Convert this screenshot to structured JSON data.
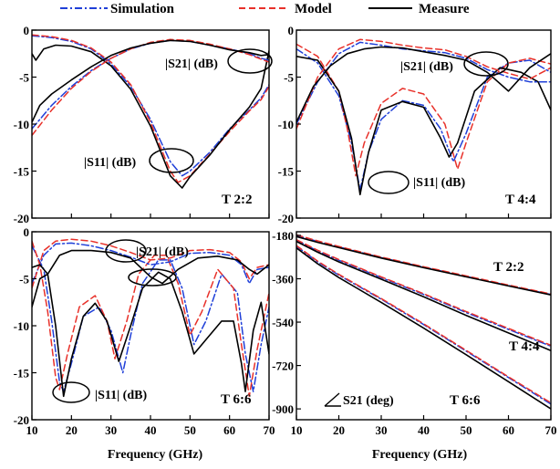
{
  "legend": [
    {
      "label": "Simulation",
      "color": "#1f3fd8",
      "dash": "dashdot"
    },
    {
      "label": "Model",
      "color": "#e8312a",
      "dash": "dash"
    },
    {
      "label": "Measure",
      "color": "#000000",
      "dash": "solid"
    }
  ],
  "xlabel": "Frequency (GHz)",
  "chart_data": [
    {
      "type": "line",
      "panel": "top-left",
      "label": "T 2:2",
      "xlim": [
        10,
        70
      ],
      "ylim": [
        -20,
        0
      ],
      "xticks": [
        10,
        20,
        30,
        40,
        50,
        60,
        70
      ],
      "yticks": [
        -20,
        -15,
        -10,
        -5,
        0
      ],
      "series": [
        {
          "name": "Simulation",
          "param": "S21",
          "x": [
            10,
            15,
            20,
            25,
            30,
            35,
            40,
            45,
            48,
            50,
            55,
            60,
            65,
            68,
            70
          ],
          "y": [
            -0.6,
            -0.8,
            -1.2,
            -2.0,
            -3.6,
            -6.0,
            -9.5,
            -14.0,
            -15.5,
            -15.0,
            -13.0,
            -10.5,
            -8.5,
            -7.2,
            -5.8
          ]
        },
        {
          "name": "Model",
          "param": "S21",
          "x": [
            10,
            15,
            20,
            25,
            30,
            35,
            40,
            45,
            47,
            50,
            55,
            60,
            65,
            68,
            70
          ],
          "y": [
            -0.5,
            -0.7,
            -1.1,
            -1.9,
            -3.4,
            -5.8,
            -9.8,
            -15.0,
            -16.2,
            -15.5,
            -13.2,
            -10.8,
            -8.6,
            -7.4,
            -6.0
          ]
        },
        {
          "name": "Measure",
          "param": "S21",
          "x": [
            10,
            11,
            13,
            16,
            20,
            25,
            30,
            35,
            40,
            45,
            48,
            50,
            55,
            60,
            65,
            68,
            70
          ],
          "y": [
            -2.5,
            -3.2,
            -2.0,
            -1.6,
            -1.7,
            -2.3,
            -3.8,
            -6.3,
            -10.2,
            -15.5,
            -16.8,
            -15.6,
            -13.3,
            -10.6,
            -8.2,
            -6.2,
            -2.2
          ]
        },
        {
          "name": "Simulation",
          "param": "S11",
          "x": [
            10,
            15,
            20,
            25,
            30,
            35,
            40,
            45,
            50,
            55,
            60,
            65,
            68,
            70
          ],
          "y": [
            -10.5,
            -8.0,
            -6.0,
            -4.3,
            -3.0,
            -2.0,
            -1.4,
            -1.1,
            -1.2,
            -1.6,
            -2.0,
            -2.5,
            -3.0,
            -3.2
          ]
        },
        {
          "name": "Model",
          "param": "S11",
          "x": [
            10,
            15,
            20,
            25,
            30,
            35,
            40,
            45,
            50,
            55,
            60,
            65,
            68,
            70
          ],
          "y": [
            -11.2,
            -8.5,
            -6.2,
            -4.4,
            -3.0,
            -2.0,
            -1.3,
            -1.0,
            -1.1,
            -1.5,
            -2.0,
            -2.6,
            -3.1,
            -3.4
          ]
        },
        {
          "name": "Measure",
          "param": "S11",
          "x": [
            10,
            12,
            15,
            20,
            25,
            30,
            35,
            40,
            45,
            50,
            55,
            60,
            65,
            68,
            70
          ],
          "y": [
            -9.8,
            -8.0,
            -6.8,
            -5.3,
            -3.9,
            -2.7,
            -1.9,
            -1.4,
            -1.1,
            -1.2,
            -1.6,
            -2.1,
            -2.4,
            -2.7,
            -2.6
          ]
        }
      ],
      "annotations": [
        "|S21| (dB)",
        "|S11| (dB)"
      ]
    },
    {
      "type": "line",
      "panel": "top-right",
      "label": "T 4:4",
      "xlim": [
        10,
        70
      ],
      "ylim": [
        -20,
        0
      ],
      "xticks": [
        10,
        20,
        30,
        40,
        50,
        60,
        70
      ],
      "yticks": [
        -20,
        -15,
        -10,
        -5,
        0
      ],
      "series": [
        {
          "name": "Simulation",
          "param": "S11",
          "x": [
            10,
            15,
            20,
            23,
            25,
            27,
            30,
            35,
            40,
            44,
            47,
            50,
            55,
            60,
            65,
            70
          ],
          "y": [
            -2.0,
            -3.5,
            -7.0,
            -12.0,
            -17.0,
            -13.0,
            -9.5,
            -7.5,
            -8.0,
            -10.5,
            -14.0,
            -11.0,
            -5.0,
            -3.5,
            -3.2,
            -4.5
          ]
        },
        {
          "name": "Model",
          "param": "S11",
          "x": [
            10,
            15,
            20,
            22,
            24,
            26,
            30,
            35,
            40,
            45,
            48,
            50,
            55,
            60,
            65,
            70
          ],
          "y": [
            -1.5,
            -2.8,
            -6.5,
            -10.5,
            -15.5,
            -12.0,
            -7.8,
            -6.2,
            -6.8,
            -10.0,
            -14.8,
            -12.0,
            -5.5,
            -3.5,
            -3.0,
            -3.6
          ]
        },
        {
          "name": "Measure",
          "param": "S11",
          "x": [
            10,
            15,
            20,
            23,
            25,
            27,
            30,
            35,
            40,
            44,
            46,
            48,
            52,
            58,
            63,
            67,
            70
          ],
          "y": [
            -2.8,
            -3.2,
            -6.5,
            -11.5,
            -17.5,
            -13.0,
            -8.5,
            -7.6,
            -8.2,
            -11.5,
            -13.5,
            -12.0,
            -6.5,
            -4.0,
            -4.5,
            -5.5,
            -8.5
          ]
        },
        {
          "name": "Simulation",
          "param": "S21",
          "x": [
            10,
            15,
            20,
            25,
            30,
            35,
            40,
            45,
            50,
            55,
            60,
            65,
            70
          ],
          "y": [
            -10.0,
            -5.5,
            -2.5,
            -1.3,
            -1.6,
            -2.0,
            -2.2,
            -2.4,
            -3.0,
            -4.2,
            -5.0,
            -5.5,
            -5.5
          ]
        },
        {
          "name": "Model",
          "param": "S21",
          "x": [
            10,
            15,
            20,
            25,
            30,
            35,
            40,
            45,
            50,
            55,
            60,
            65,
            70
          ],
          "y": [
            -10.5,
            -5.0,
            -2.0,
            -1.0,
            -1.2,
            -1.6,
            -1.9,
            -2.1,
            -2.8,
            -3.9,
            -4.6,
            -5.2,
            -4.0
          ]
        },
        {
          "name": "Measure",
          "param": "S21",
          "x": [
            10,
            14,
            18,
            22,
            26,
            30,
            35,
            40,
            45,
            50,
            55,
            60,
            65,
            70
          ],
          "y": [
            -9.8,
            -6.0,
            -3.8,
            -2.5,
            -2.0,
            -1.8,
            -1.9,
            -2.3,
            -2.7,
            -3.2,
            -4.5,
            -6.5,
            -4.0,
            -2.5
          ]
        }
      ],
      "annotations": [
        "|S21| (dB)",
        "|S11| (dB)"
      ]
    },
    {
      "type": "line",
      "panel": "bottom-left",
      "label": "T 6:6",
      "xlim": [
        10,
        70
      ],
      "ylim": [
        -20,
        0
      ],
      "xticks": [
        10,
        20,
        30,
        40,
        50,
        60,
        70
      ],
      "yticks": [
        -20,
        -15,
        -10,
        -5,
        0
      ],
      "series": [
        {
          "name": "Simulation",
          "param": "S11",
          "x": [
            10,
            13,
            15,
            17,
            18,
            20,
            23,
            27,
            30,
            33,
            35,
            38,
            42,
            45,
            48,
            51,
            54,
            58,
            62,
            64,
            66,
            68,
            70
          ],
          "y": [
            -1.5,
            -4.0,
            -9.5,
            -16.0,
            -17.0,
            -14.0,
            -9.0,
            -8.0,
            -10.5,
            -15.0,
            -11.0,
            -5.5,
            -3.0,
            -3.0,
            -6.0,
            -12.0,
            -9.5,
            -4.5,
            -6.5,
            -13.0,
            -17.0,
            -12.0,
            -8.0
          ]
        },
        {
          "name": "Model",
          "param": "S11",
          "x": [
            10,
            12,
            14,
            16,
            17,
            19,
            22,
            26,
            29,
            31,
            34,
            37,
            41,
            44,
            47,
            50,
            53,
            57,
            61,
            63,
            65,
            67,
            70
          ],
          "y": [
            -1.0,
            -3.5,
            -8.5,
            -15.5,
            -16.8,
            -13.0,
            -8.0,
            -6.8,
            -9.5,
            -13.5,
            -9.5,
            -4.5,
            -2.5,
            -2.5,
            -5.5,
            -11.0,
            -8.5,
            -4.0,
            -6.0,
            -12.0,
            -17.5,
            -12.5,
            -6.5
          ]
        },
        {
          "name": "Measure",
          "param": "S11",
          "x": [
            10,
            12,
            14,
            16,
            18,
            20,
            23,
            26,
            29,
            32,
            35,
            38,
            42,
            45,
            48,
            51,
            54,
            58,
            61,
            63,
            64,
            66,
            68,
            70
          ],
          "y": [
            -8.0,
            -5.0,
            -4.5,
            -10.0,
            -17.5,
            -13.5,
            -9.0,
            -7.6,
            -9.5,
            -13.8,
            -10.0,
            -6.0,
            -4.3,
            -5.0,
            -8.5,
            -13.0,
            -11.5,
            -9.5,
            -9.5,
            -14.0,
            -17.0,
            -10.5,
            -7.5,
            -13.0
          ]
        },
        {
          "name": "Simulation",
          "param": "S21",
          "x": [
            10,
            13,
            16,
            20,
            25,
            30,
            35,
            40,
            45,
            50,
            55,
            60,
            63,
            65,
            67,
            70
          ],
          "y": [
            -5.5,
            -2.5,
            -1.3,
            -1.2,
            -1.5,
            -2.0,
            -2.7,
            -3.5,
            -3.2,
            -2.3,
            -2.2,
            -2.5,
            -3.5,
            -5.5,
            -4.0,
            -3.8
          ]
        },
        {
          "name": "Model",
          "param": "S21",
          "x": [
            10,
            13,
            16,
            20,
            25,
            30,
            35,
            40,
            45,
            50,
            55,
            60,
            63,
            65,
            67,
            70
          ],
          "y": [
            -6.0,
            -2.0,
            -1.0,
            -0.8,
            -1.0,
            -1.5,
            -2.2,
            -3.0,
            -2.8,
            -2.0,
            -1.9,
            -2.2,
            -3.2,
            -5.0,
            -3.8,
            -3.5
          ]
        },
        {
          "name": "Measure",
          "param": "S21",
          "x": [
            10,
            12,
            14,
            17,
            20,
            25,
            30,
            35,
            40,
            43,
            47,
            52,
            57,
            62,
            65,
            67,
            70
          ],
          "y": [
            -3.8,
            -3.5,
            -4.5,
            -2.5,
            -2.0,
            -2.0,
            -2.2,
            -2.8,
            -4.8,
            -5.5,
            -4.0,
            -2.8,
            -2.6,
            -3.0,
            -4.0,
            -4.5,
            -3.5
          ]
        }
      ],
      "annotations": [
        "|S21| (dB)",
        "|S11| (dB)"
      ]
    },
    {
      "type": "line",
      "panel": "bottom-right",
      "label": "",
      "xlim": [
        10,
        70
      ],
      "ylim": [
        -945,
        -165
      ],
      "xticks": [
        10,
        20,
        30,
        40,
        50,
        60,
        70
      ],
      "yticks": [
        -900,
        -720,
        -540,
        -360,
        -180
      ],
      "series": [
        {
          "name": "Simulation",
          "param": "S21 T 2:2",
          "x": [
            10,
            15,
            20,
            30,
            40,
            50,
            60,
            70
          ],
          "y": [
            -180,
            -205,
            -228,
            -272,
            -312,
            -350,
            -388,
            -425
          ]
        },
        {
          "name": "Model",
          "param": "S21 T 2:2",
          "x": [
            10,
            15,
            20,
            30,
            40,
            50,
            60,
            70
          ],
          "y": [
            -178,
            -203,
            -226,
            -270,
            -310,
            -348,
            -386,
            -423
          ]
        },
        {
          "name": "Measure",
          "param": "S21 T 2:2",
          "x": [
            10,
            15,
            20,
            30,
            40,
            50,
            60,
            70
          ],
          "y": [
            -185,
            -209,
            -231,
            -274,
            -314,
            -352,
            -390,
            -427
          ]
        },
        {
          "name": "Simulation",
          "param": "S21 T 4:4",
          "x": [
            10,
            15,
            20,
            30,
            40,
            50,
            60,
            70
          ],
          "y": [
            -200,
            -245,
            -283,
            -355,
            -425,
            -500,
            -570,
            -640
          ]
        },
        {
          "name": "Model",
          "param": "S21 T 4:4",
          "x": [
            10,
            15,
            20,
            30,
            40,
            50,
            60,
            70
          ],
          "y": [
            -198,
            -242,
            -280,
            -352,
            -422,
            -496,
            -566,
            -636
          ]
        },
        {
          "name": "Measure",
          "param": "S21 T 4:4",
          "x": [
            10,
            15,
            20,
            30,
            40,
            50,
            60,
            70
          ],
          "y": [
            -205,
            -250,
            -290,
            -362,
            -435,
            -512,
            -585,
            -658
          ]
        },
        {
          "name": "Simulation",
          "param": "S21 T 6:6",
          "x": [
            10,
            15,
            20,
            30,
            40,
            50,
            60,
            70
          ],
          "y": [
            -225,
            -290,
            -345,
            -445,
            -550,
            -660,
            -770,
            -880
          ]
        },
        {
          "name": "Model",
          "param": "S21 T 6:6",
          "x": [
            10,
            15,
            20,
            30,
            40,
            50,
            60,
            70
          ],
          "y": [
            -222,
            -287,
            -342,
            -442,
            -547,
            -657,
            -767,
            -875
          ]
        },
        {
          "name": "Measure",
          "param": "S21 T 6:6",
          "x": [
            10,
            15,
            20,
            30,
            40,
            50,
            60,
            70
          ],
          "y": [
            -232,
            -298,
            -355,
            -458,
            -565,
            -675,
            -787,
            -900
          ]
        }
      ],
      "annotations": [
        "T 2:2",
        "T 4:4",
        "T 6:6",
        "S21 (deg)"
      ]
    }
  ]
}
